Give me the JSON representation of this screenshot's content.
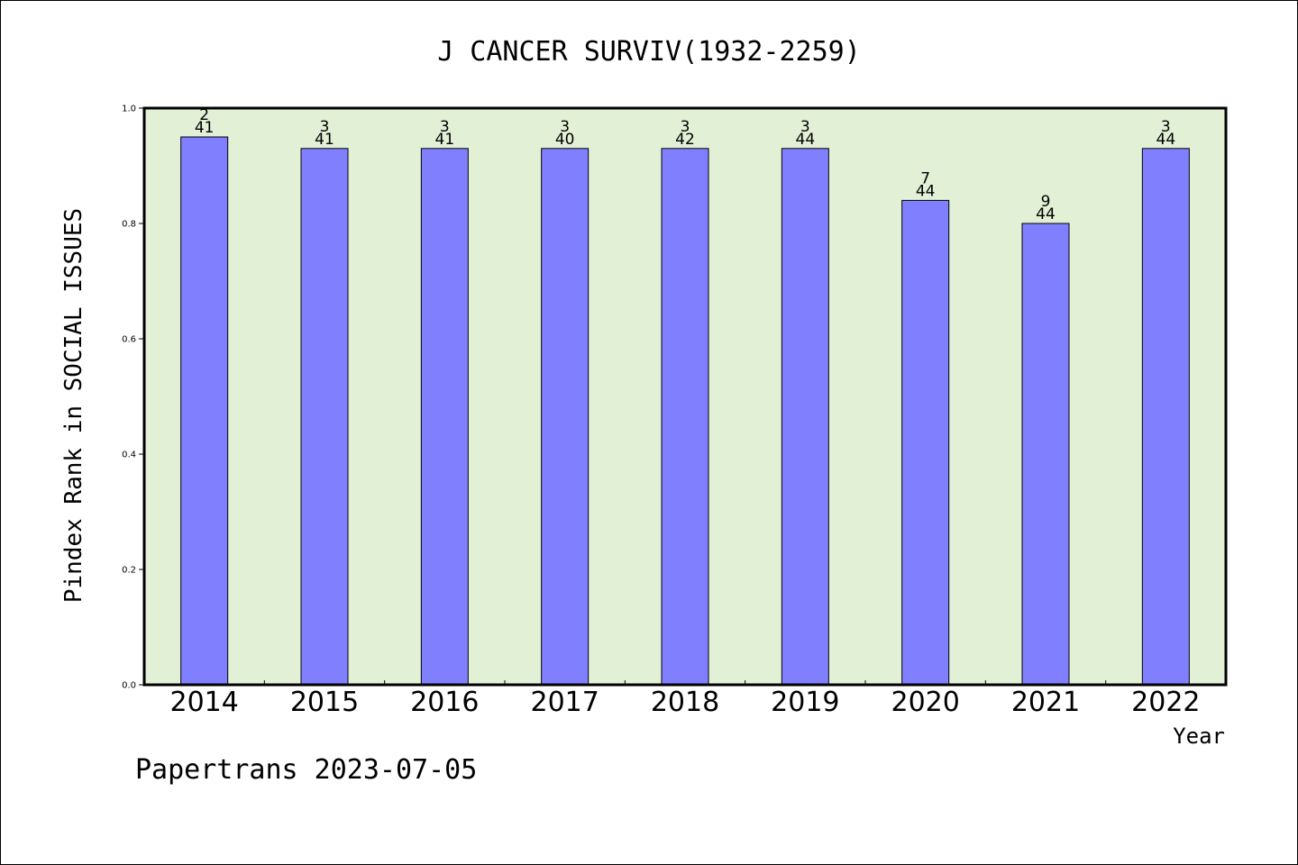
{
  "chart_data": {
    "type": "bar",
    "title": "J CANCER SURVIV(1932-2259)",
    "xlabel": "Year",
    "ylabel": "Pindex Rank in SOCIAL ISSUES",
    "categories": [
      "2014",
      "2015",
      "2016",
      "2017",
      "2018",
      "2019",
      "2020",
      "2021",
      "2022"
    ],
    "values": [
      0.95,
      0.93,
      0.93,
      0.93,
      0.93,
      0.93,
      0.84,
      0.8,
      0.93
    ],
    "rank_labels": [
      "2",
      "3",
      "3",
      "3",
      "3",
      "3",
      "7",
      "9",
      "3"
    ],
    "total_labels": [
      "41",
      "41",
      "41",
      "40",
      "42",
      "44",
      "44",
      "44",
      "44"
    ],
    "ylim": [
      0.0,
      1.0
    ],
    "yticks": [
      "0.0",
      "0.2",
      "0.4",
      "0.6",
      "0.8",
      "1.0"
    ],
    "grid": false,
    "legend": "none",
    "colors": {
      "bar": "#8080ff",
      "plot_background": "#e2f0d6",
      "axis": "#000000"
    }
  },
  "footer": {
    "text": "Papertrans 2023-07-05"
  }
}
